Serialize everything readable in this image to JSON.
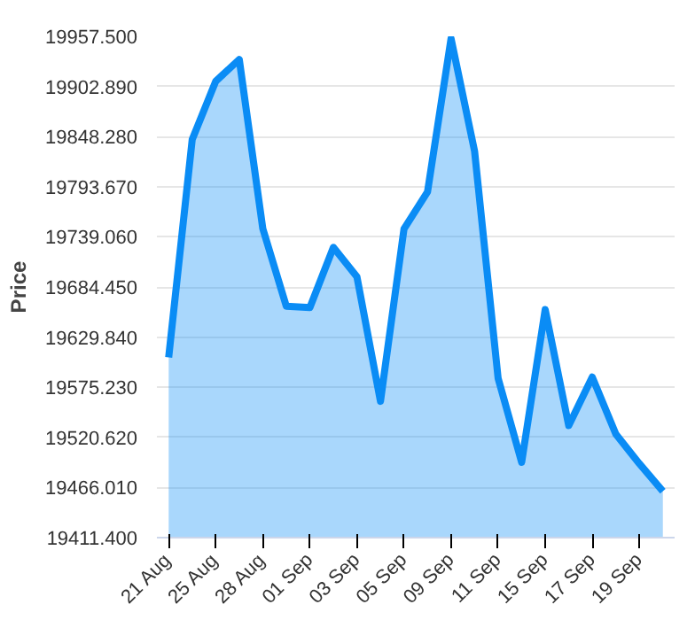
{
  "chart_data": {
    "type": "area",
    "ylabel": "Price",
    "categories": [
      "21 Aug",
      null,
      "25 Aug",
      null,
      "28 Aug",
      null,
      "01 Sep",
      null,
      "03 Sep",
      null,
      "05 Sep",
      null,
      "09 Sep",
      null,
      "11 Sep",
      null,
      "15 Sep",
      null,
      "17 Sep",
      null,
      "19 Sep",
      null
    ],
    "series": [
      {
        "color": "#0a8cf5",
        "values": [
          19607.7,
          19845,
          19908.5,
          19932.3,
          19748,
          19663.4,
          19662,
          19727.6,
          19695.5,
          19559.9,
          19747.7,
          19788,
          19955,
          19832.3,
          19584.9,
          19493.5,
          19659.8,
          19533.5,
          19586.3,
          19524.2,
          19492,
          19462
        ]
      }
    ],
    "ylim": [
      19411.4,
      19957.5
    ],
    "yticks": [
      {
        "value": 19411.4,
        "label": "19411.400"
      },
      {
        "value": 19466.01,
        "label": "19466.010"
      },
      {
        "value": 19520.62,
        "label": "19520.620"
      },
      {
        "value": 19575.23,
        "label": "19575.230"
      },
      {
        "value": 19629.84,
        "label": "19629.840"
      },
      {
        "value": 19684.45,
        "label": "19684.450"
      },
      {
        "value": 19739.06,
        "label": "19739.060"
      },
      {
        "value": 19793.67,
        "label": "19793.670"
      },
      {
        "value": 19848.28,
        "label": "19848.280"
      },
      {
        "value": 19902.89,
        "label": "19902.890"
      },
      {
        "value": 19957.5,
        "label": "19957.500"
      }
    ],
    "grid": "y"
  }
}
